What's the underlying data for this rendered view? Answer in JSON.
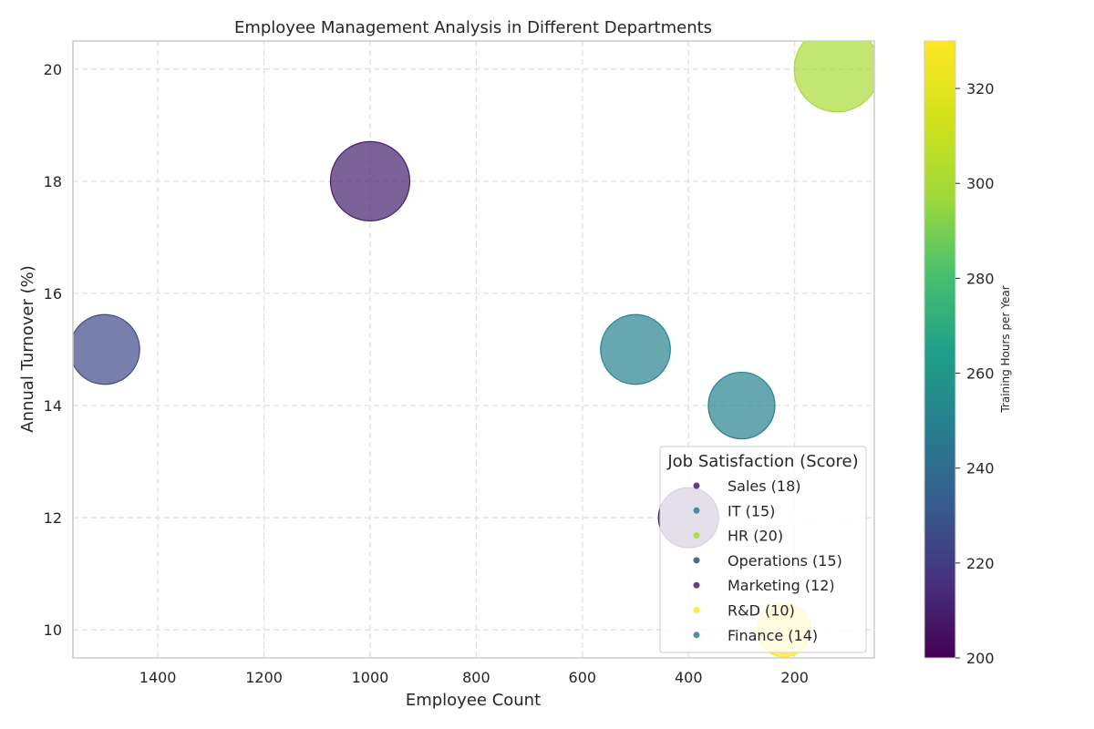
{
  "chart_data": {
    "type": "scatter",
    "title": "Employee Management Analysis in Different Departments",
    "xlabel": "Employee Count",
    "ylabel": "Annual Turnover (%)",
    "x_inverted": true,
    "xlim": [
      1560,
      50
    ],
    "ylim": [
      9.5,
      20.5
    ],
    "xticks": [
      1400,
      1200,
      1000,
      800,
      600,
      400,
      200
    ],
    "yticks": [
      10,
      12,
      14,
      16,
      18,
      20
    ],
    "grid": true,
    "size_encodes": "Job Satisfaction (Score)",
    "color_encodes": "Training Hours per Year",
    "colorbar": {
      "label": "Training Hours per Year",
      "min": 200,
      "max": 330,
      "ticks": [
        200,
        220,
        240,
        260,
        280,
        300,
        320
      ],
      "colormap": "viridis"
    },
    "legend": {
      "title": "Job Satisfaction (Score)",
      "placement": "lower-right",
      "entries": [
        "Sales (18)",
        "IT (15)",
        "HR (20)",
        "Operations (15)",
        "Marketing (12)",
        "R&D (10)",
        "Finance (14)"
      ]
    },
    "points": [
      {
        "department": "Sales",
        "employee_count": 1000,
        "annual_turnover": 18,
        "job_satisfaction": 18,
        "training_hours": 210
      },
      {
        "department": "IT",
        "employee_count": 500,
        "annual_turnover": 15,
        "job_satisfaction": 15,
        "training_hours": 250
      },
      {
        "department": "HR",
        "employee_count": 120,
        "annual_turnover": 20,
        "job_satisfaction": 20,
        "training_hours": 300
      },
      {
        "department": "Operations",
        "employee_count": 1500,
        "annual_turnover": 15,
        "job_satisfaction": 15,
        "training_hours": 225
      },
      {
        "department": "Marketing",
        "employee_count": 400,
        "annual_turnover": 12,
        "job_satisfaction": 12,
        "training_hours": 210
      },
      {
        "department": "R&D",
        "employee_count": 220,
        "annual_turnover": 10,
        "job_satisfaction": 10,
        "training_hours": 330
      },
      {
        "department": "Finance",
        "employee_count": 300,
        "annual_turnover": 14,
        "job_satisfaction": 14,
        "training_hours": 250
      }
    ]
  }
}
